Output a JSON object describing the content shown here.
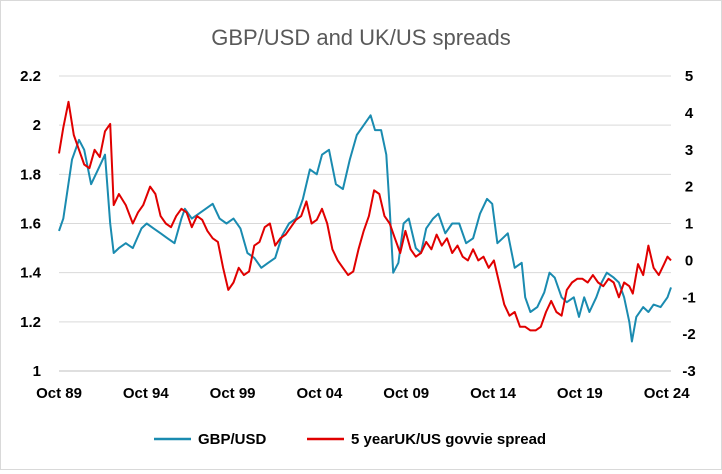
{
  "chart_data": {
    "type": "line",
    "title": "GBP/USD and UK/US spreads",
    "grid": true,
    "legend_position": "bottom",
    "x_tick_labels": [
      "Oct 89",
      "Oct 94",
      "Oct 99",
      "Oct 04",
      "Oct 09",
      "Oct 14",
      "Oct 19",
      "Oct 24"
    ],
    "x_range": [
      1989.75,
      2025.0
    ],
    "y_left": {
      "range": [
        1,
        2.2
      ],
      "ticks": [
        "1",
        "1.2",
        "1.4",
        "1.6",
        "1.8",
        "2",
        "2.2"
      ]
    },
    "y_right": {
      "range": [
        -3,
        5
      ],
      "ticks": [
        "-3",
        "-2",
        "-1",
        "0",
        "1",
        "2",
        "3",
        "4",
        "5"
      ]
    },
    "series": [
      {
        "name": "GBP/USD",
        "axis": "left",
        "color": "#1a8bb0",
        "x": [
          1989.75,
          1990.0,
          1990.5,
          1990.9,
          1991.2,
          1991.6,
          1992.0,
          1992.4,
          1992.7,
          1992.9,
          1993.2,
          1993.6,
          1994.0,
          1994.5,
          1994.8,
          1995.2,
          1995.6,
          1996.0,
          1996.4,
          1996.8,
          1997.0,
          1997.4,
          1997.8,
          1998.2,
          1998.6,
          1999.0,
          1999.4,
          1999.8,
          2000.2,
          2000.6,
          2001.0,
          2001.4,
          2001.8,
          2002.2,
          2002.6,
          2003.0,
          2003.4,
          2003.8,
          2004.2,
          2004.6,
          2004.9,
          2005.3,
          2005.7,
          2006.1,
          2006.5,
          2006.9,
          2007.3,
          2007.7,
          2007.95,
          2008.3,
          2008.6,
          2008.8,
          2009.0,
          2009.3,
          2009.6,
          2009.9,
          2010.3,
          2010.6,
          2010.9,
          2011.3,
          2011.6,
          2012.0,
          2012.4,
          2012.8,
          2013.2,
          2013.6,
          2014.0,
          2014.4,
          2014.7,
          2015.0,
          2015.3,
          2015.6,
          2016.0,
          2016.4,
          2016.6,
          2016.9,
          2017.3,
          2017.7,
          2018.0,
          2018.3,
          2018.7,
          2019.0,
          2019.4,
          2019.7,
          2020.0,
          2020.3,
          2020.7,
          2021.0,
          2021.3,
          2021.7,
          2022.0,
          2022.3,
          2022.6,
          2022.75,
          2023.0,
          2023.4,
          2023.7,
          2024.0,
          2024.4,
          2024.8,
          2025.0
        ],
        "y": [
          1.57,
          1.62,
          1.86,
          1.94,
          1.9,
          1.76,
          1.82,
          1.88,
          1.6,
          1.48,
          1.5,
          1.52,
          1.5,
          1.58,
          1.6,
          1.58,
          1.56,
          1.54,
          1.52,
          1.62,
          1.66,
          1.62,
          1.64,
          1.66,
          1.68,
          1.62,
          1.6,
          1.62,
          1.58,
          1.48,
          1.46,
          1.42,
          1.44,
          1.46,
          1.55,
          1.6,
          1.62,
          1.7,
          1.82,
          1.8,
          1.88,
          1.9,
          1.76,
          1.74,
          1.86,
          1.96,
          2.0,
          2.04,
          1.98,
          1.98,
          1.88,
          1.66,
          1.4,
          1.44,
          1.6,
          1.62,
          1.5,
          1.48,
          1.58,
          1.62,
          1.64,
          1.56,
          1.6,
          1.6,
          1.52,
          1.54,
          1.64,
          1.7,
          1.68,
          1.52,
          1.54,
          1.56,
          1.42,
          1.44,
          1.3,
          1.24,
          1.26,
          1.32,
          1.4,
          1.38,
          1.3,
          1.28,
          1.3,
          1.22,
          1.3,
          1.24,
          1.3,
          1.36,
          1.4,
          1.38,
          1.36,
          1.3,
          1.2,
          1.12,
          1.22,
          1.26,
          1.24,
          1.27,
          1.26,
          1.3,
          1.34
        ]
      },
      {
        "name": "5 yearUK/US govvie spread",
        "axis": "right",
        "color": "#e00000",
        "x": [
          1989.75,
          1990.0,
          1990.3,
          1990.6,
          1990.9,
          1991.2,
          1991.5,
          1991.8,
          1992.1,
          1992.4,
          1992.7,
          1992.9,
          1993.2,
          1993.6,
          1994.0,
          1994.3,
          1994.6,
          1995.0,
          1995.3,
          1995.6,
          1995.9,
          1996.2,
          1996.5,
          1996.8,
          1997.1,
          1997.4,
          1997.7,
          1998.0,
          1998.3,
          1998.6,
          1998.9,
          1999.2,
          1999.5,
          1999.8,
          2000.1,
          2000.4,
          2000.7,
          2001.0,
          2001.3,
          2001.6,
          2001.9,
          2002.2,
          2002.5,
          2002.8,
          2003.1,
          2003.4,
          2003.7,
          2004.0,
          2004.3,
          2004.6,
          2004.9,
          2005.2,
          2005.5,
          2005.8,
          2006.1,
          2006.4,
          2006.7,
          2007.0,
          2007.3,
          2007.6,
          2007.9,
          2008.2,
          2008.5,
          2008.8,
          2009.1,
          2009.4,
          2009.7,
          2010.0,
          2010.3,
          2010.6,
          2010.9,
          2011.2,
          2011.5,
          2011.8,
          2012.1,
          2012.4,
          2012.7,
          2013.0,
          2013.3,
          2013.6,
          2013.9,
          2014.2,
          2014.5,
          2014.8,
          2015.1,
          2015.4,
          2015.7,
          2016.0,
          2016.3,
          2016.6,
          2016.9,
          2017.2,
          2017.5,
          2017.8,
          2018.1,
          2018.4,
          2018.7,
          2019.0,
          2019.3,
          2019.6,
          2019.9,
          2020.2,
          2020.5,
          2020.8,
          2021.1,
          2021.4,
          2021.7,
          2022.0,
          2022.3,
          2022.6,
          2022.8,
          2023.1,
          2023.4,
          2023.7,
          2024.0,
          2024.3,
          2024.6,
          2024.8,
          2025.0
        ],
        "y": [
          2.9,
          3.6,
          4.3,
          3.4,
          3.0,
          2.6,
          2.5,
          3.0,
          2.8,
          3.5,
          3.7,
          1.5,
          1.8,
          1.5,
          1.0,
          1.3,
          1.5,
          2.0,
          1.8,
          1.2,
          1.0,
          0.9,
          1.2,
          1.4,
          1.3,
          0.9,
          1.2,
          1.1,
          0.8,
          0.6,
          0.5,
          -0.2,
          -0.8,
          -0.6,
          -0.2,
          -0.4,
          -0.3,
          0.4,
          0.5,
          0.9,
          1.0,
          0.4,
          0.6,
          0.7,
          0.9,
          1.1,
          1.2,
          1.6,
          1.0,
          1.1,
          1.4,
          1.0,
          0.3,
          0.0,
          -0.2,
          -0.4,
          -0.3,
          0.3,
          0.8,
          1.2,
          1.9,
          1.8,
          1.2,
          1.0,
          0.6,
          0.2,
          0.8,
          0.3,
          0.1,
          0.2,
          0.5,
          0.3,
          0.7,
          0.4,
          0.6,
          0.2,
          0.4,
          0.1,
          0.0,
          0.3,
          0.0,
          0.1,
          -0.2,
          0.0,
          -0.6,
          -1.2,
          -1.5,
          -1.4,
          -1.8,
          -1.8,
          -1.9,
          -1.9,
          -1.8,
          -1.4,
          -1.1,
          -1.4,
          -1.5,
          -0.8,
          -0.6,
          -0.5,
          -0.5,
          -0.6,
          -0.4,
          -0.6,
          -0.7,
          -0.5,
          -0.6,
          -1.0,
          -0.6,
          -0.7,
          -0.9,
          -0.1,
          -0.4,
          0.4,
          -0.2,
          -0.4,
          -0.1,
          0.1,
          0.0
        ]
      }
    ]
  }
}
